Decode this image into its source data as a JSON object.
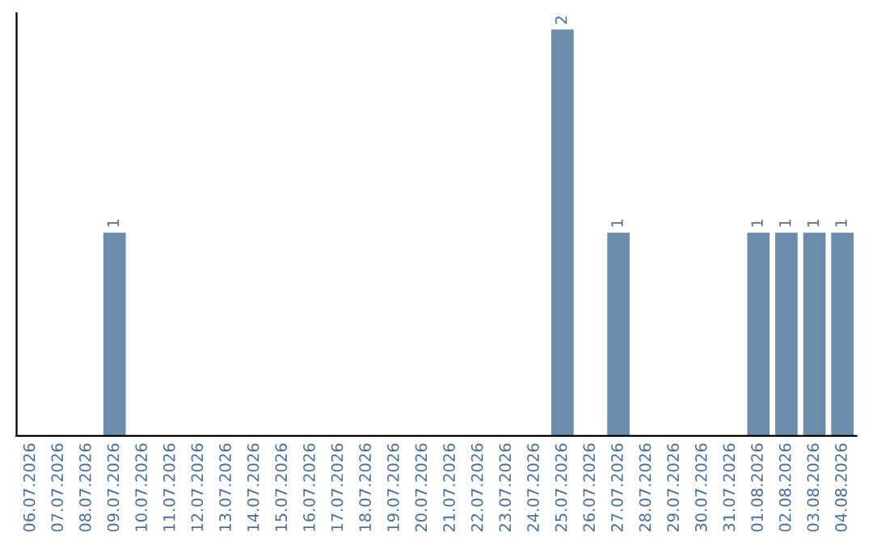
{
  "chart_data": {
    "type": "bar",
    "categories": [
      "06.07.2026",
      "07.07.2026",
      "08.07.2026",
      "09.07.2026",
      "10.07.2026",
      "11.07.2026",
      "12.07.2026",
      "13.07.2026",
      "14.07.2026",
      "15.07.2026",
      "16.07.2026",
      "17.07.2026",
      "18.07.2026",
      "19.07.2026",
      "20.07.2026",
      "21.07.2026",
      "22.07.2026",
      "23.07.2026",
      "24.07.2026",
      "25.07.2026",
      "26.07.2026",
      "27.07.2026",
      "28.07.2026",
      "29.07.2026",
      "30.07.2026",
      "31.07.2026",
      "01.08.2026",
      "02.08.2026",
      "03.08.2026",
      "04.08.2026"
    ],
    "values": [
      0,
      0,
      0,
      1,
      0,
      0,
      0,
      0,
      0,
      0,
      0,
      0,
      0,
      0,
      0,
      0,
      0,
      0,
      0,
      2,
      0,
      1,
      0,
      0,
      0,
      0,
      1,
      1,
      1,
      1
    ],
    "value_labels": [
      null,
      null,
      null,
      "1",
      null,
      null,
      null,
      null,
      null,
      null,
      null,
      null,
      null,
      null,
      null,
      null,
      null,
      null,
      null,
      "2",
      null,
      "1",
      null,
      null,
      null,
      null,
      "1",
      "1",
      "1",
      "1"
    ],
    "color": "#6b8cab",
    "tick_labels": "x",
    "grid": false,
    "legend": false
  }
}
